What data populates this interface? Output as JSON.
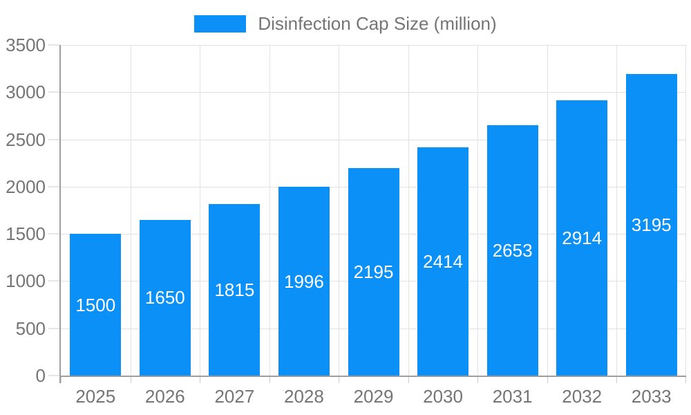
{
  "legend": {
    "label": "Disinfection Cap Size (million)",
    "swatch_color": "#0b90f7"
  },
  "chart_data": {
    "type": "bar",
    "title": "Disinfection Cap Size (million)",
    "categories": [
      "2025",
      "2026",
      "2027",
      "2028",
      "2029",
      "2030",
      "2031",
      "2032",
      "2033"
    ],
    "series": [
      {
        "name": "Disinfection Cap Size (million)",
        "values": [
          1500,
          1650,
          1815,
          1996,
          2195,
          2414,
          2653,
          2914,
          3195
        ]
      }
    ],
    "value_labels": [
      "1500",
      "1650",
      "1815",
      "1996",
      "2195",
      "2414",
      "2653",
      "2914",
      "3195"
    ],
    "xlabel": "",
    "ylabel": "",
    "ylim": [
      0,
      3500
    ],
    "ytick_step": 500,
    "yticks": [
      0,
      500,
      1000,
      1500,
      2000,
      2500,
      3000,
      3500
    ],
    "grid": true,
    "legend_position": "top-center",
    "value_label_position": "inside-center",
    "colors": {
      "bar": "#0b90f7",
      "value_label_text": "#ffffff",
      "axis_text": "#757575",
      "axis_line": "#9e9e9e",
      "gridline": "#e2e2e2",
      "tick": "#cccccc",
      "background": "#ffffff"
    }
  }
}
